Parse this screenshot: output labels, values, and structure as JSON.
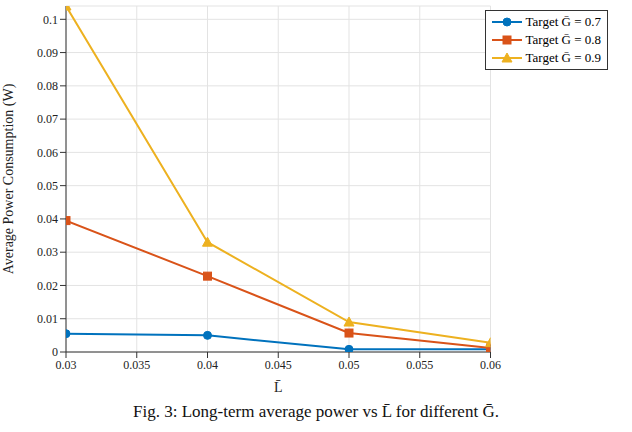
{
  "chart_data": {
    "type": "line",
    "caption": "Fig. 3: Long-term average power vs L̄ for different Ḡ.",
    "x_label": "L̄",
    "y_label": "Average Power Consumption (W)",
    "x": [
      0.03,
      0.04,
      0.05,
      0.06
    ],
    "xlim": [
      0.03,
      0.06
    ],
    "xticks": [
      0.03,
      0.035,
      0.04,
      0.045,
      0.05,
      0.055,
      0.06
    ],
    "ylim": [
      0,
      0.104
    ],
    "yticks": [
      0,
      0.01,
      0.02,
      0.03,
      0.04,
      0.05,
      0.06,
      0.07,
      0.08,
      0.09,
      0.1
    ],
    "grid": true,
    "legend": "top-right",
    "series": [
      {
        "name": "Target Ḡ = 0.7",
        "color": "#0072BD",
        "marker": "circle",
        "values": [
          0.0055,
          0.005,
          0.0008,
          0.0008
        ]
      },
      {
        "name": "Target Ḡ = 0.8",
        "color": "#D95319",
        "marker": "square",
        "values": [
          0.0395,
          0.0228,
          0.0057,
          0.0012
        ]
      },
      {
        "name": "Target Ḡ = 0.9",
        "color": "#EDB120",
        "marker": "triangle",
        "values": [
          0.104,
          0.033,
          0.009,
          0.0028
        ]
      }
    ]
  }
}
